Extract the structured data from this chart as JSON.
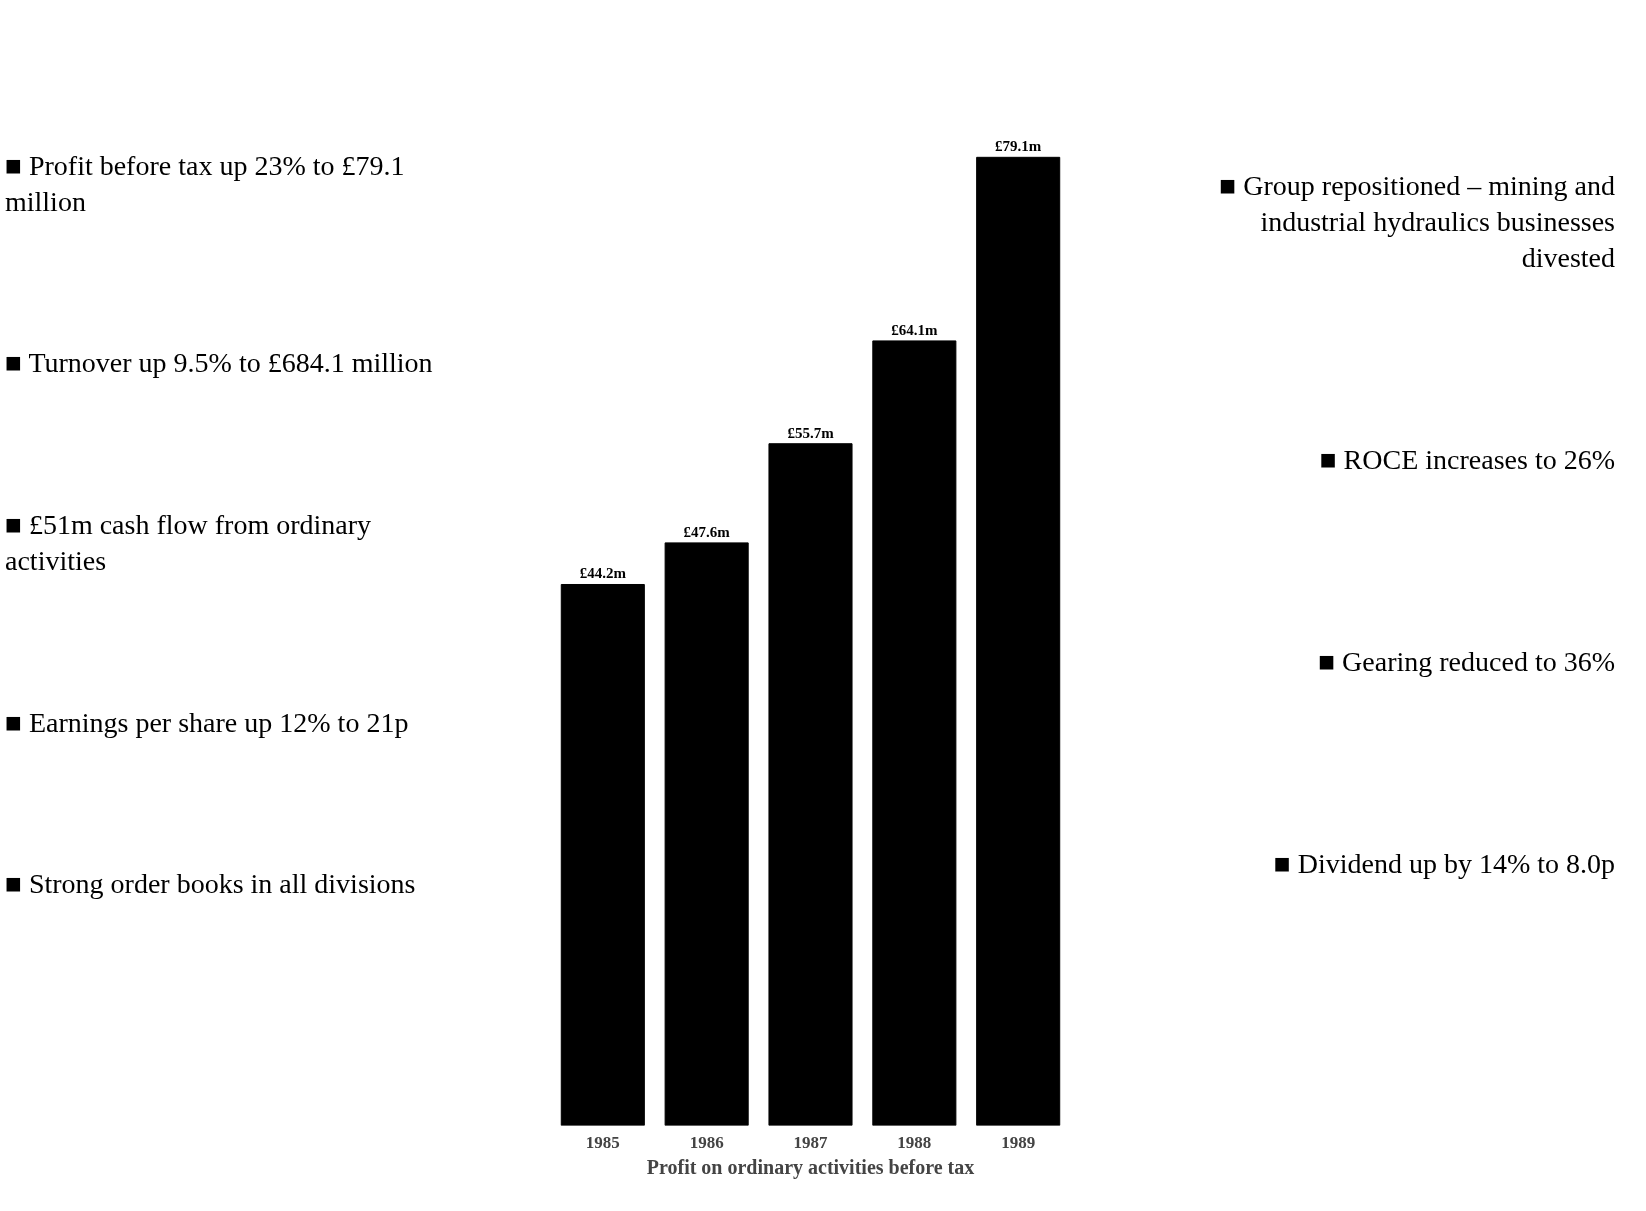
{
  "chart_data": {
    "type": "bar",
    "xlabel": "Profit on ordinary activities before tax",
    "categories": [
      "1985",
      "1986",
      "1987",
      "1988",
      "1989"
    ],
    "values": [
      44.2,
      47.6,
      55.7,
      64.1,
      79.1
    ],
    "value_labels": [
      "£44.2m",
      "£47.6m",
      "£55.7m",
      "£64.1m",
      "£79.1m"
    ],
    "color": "#000000",
    "annotations": [
      "■ Profit before tax up 23% to £79.1 million",
      "■ Turnover up 9.5% to £684.1 million",
      "■ £51m cash flow from ordinary activities",
      "■ Earnings per share up 12% to 21p",
      "■ Strong order books in all divisions",
      "■ Group repositioned – mining and industrial hydraulics businesses divested",
      "■ ROCE increases to 26%",
      "■ Gearing reduced to 36%",
      "■ Dividend up by 14% to 8.0p"
    ]
  }
}
